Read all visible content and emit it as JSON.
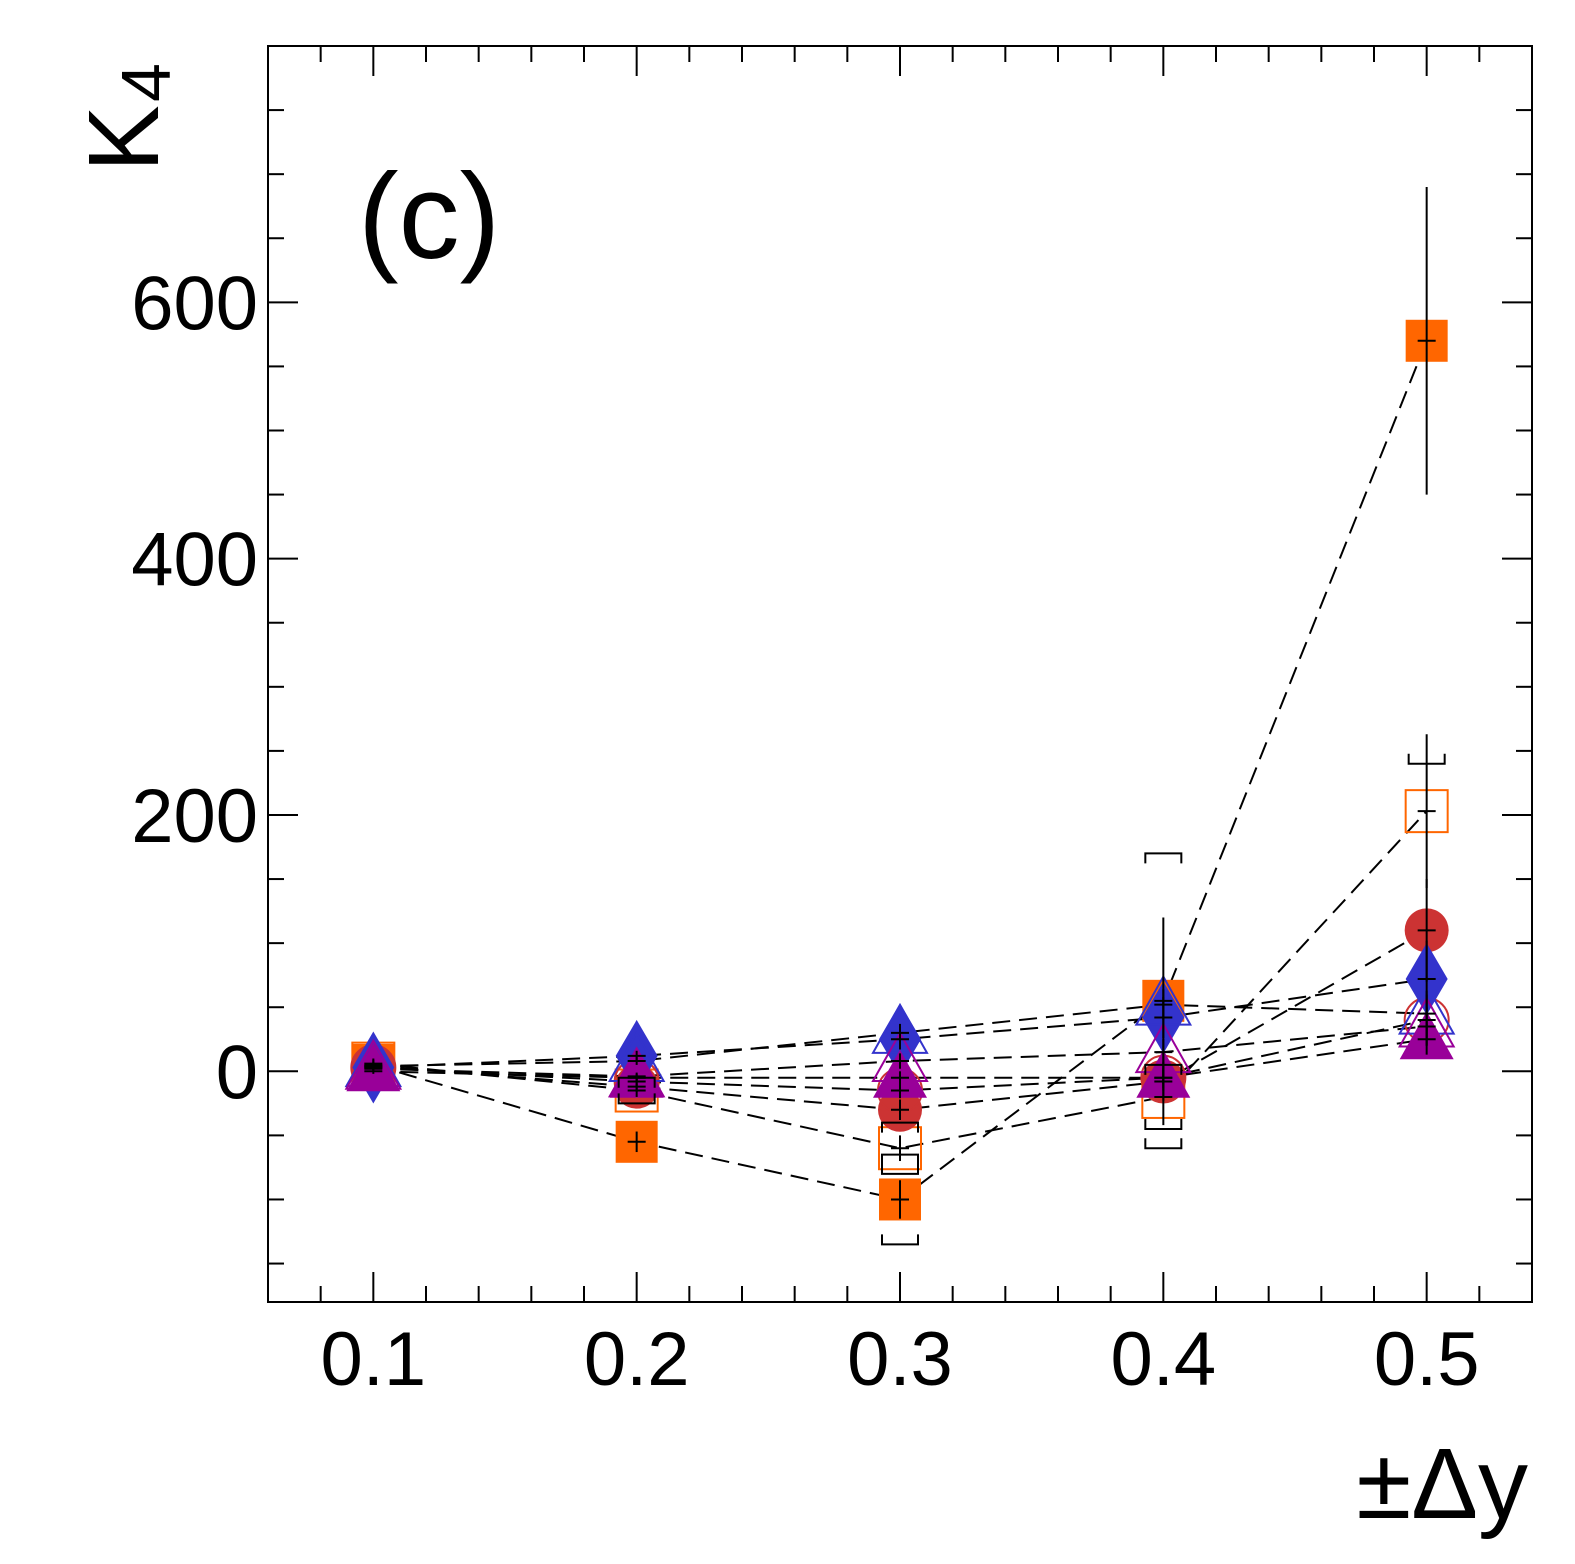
{
  "chart_data": {
    "type": "scatter",
    "title": "",
    "panel_label": "(c)",
    "xlabel": "±Δy",
    "ylabel": "K",
    "ylabel_subscript": "4",
    "x": [
      0.1,
      0.2,
      0.3,
      0.4,
      0.5
    ],
    "xticks": [
      "0.1",
      "0.2",
      "0.3",
      "0.4",
      "0.5"
    ],
    "yticks": [
      "0",
      "200",
      "400",
      "600"
    ],
    "xlim": [
      0.06,
      0.54
    ],
    "ylim": [
      -180,
      800
    ],
    "grid": false,
    "colors": {
      "orange": "#ff6600",
      "red": "#cc3333",
      "blue": "#3333cc",
      "purple": "#990099",
      "black": "#000000"
    },
    "series": [
      {
        "name": "filled square (orange)",
        "marker": "square",
        "filled": true,
        "color": "#ff6600",
        "values": [
          5,
          -55,
          -100,
          55,
          570
        ],
        "err": [
          5,
          8,
          15,
          65,
          120
        ],
        "sys": [
          null,
          null,
          35,
          115,
          330
        ]
      },
      {
        "name": "open square (orange)",
        "marker": "square",
        "filled": false,
        "color": "#ff6600",
        "values": [
          6,
          -15,
          -60,
          -20,
          203
        ],
        "err": [
          3,
          5,
          10,
          22,
          60
        ],
        "sys": [
          null,
          10,
          20,
          25,
          null
        ]
      },
      {
        "name": "filled circle (red)",
        "marker": "circle",
        "filled": true,
        "color": "#cc3333",
        "values": [
          4,
          -12,
          -30,
          -8,
          110
        ],
        "err": [
          3,
          4,
          8,
          15,
          40
        ],
        "sys": [
          null,
          null,
          null,
          null,
          null
        ]
      },
      {
        "name": "open circle (red)",
        "marker": "circle",
        "filled": false,
        "color": "#cc3333",
        "values": [
          3,
          -8,
          -15,
          -5,
          40
        ],
        "err": [
          2,
          3,
          6,
          10,
          20
        ],
        "sys": [
          null,
          null,
          null,
          null,
          null
        ]
      },
      {
        "name": "filled diamond (blue)",
        "marker": "diamond",
        "filled": true,
        "color": "#3333cc",
        "values": [
          3,
          12,
          25,
          42,
          72
        ],
        "err": [
          2,
          4,
          8,
          16,
          30
        ],
        "sys": [
          null,
          null,
          null,
          null,
          null
        ]
      },
      {
        "name": "open triangle (blue)",
        "marker": "triangle",
        "filled": false,
        "color": "#3333cc",
        "values": [
          4,
          8,
          30,
          52,
          45
        ],
        "err": [
          2,
          3,
          7,
          12,
          18
        ],
        "sys": [
          null,
          null,
          null,
          null,
          null
        ]
      },
      {
        "name": "open triangle (purple)",
        "marker": "triangle",
        "filled": false,
        "color": "#990099",
        "values": [
          2,
          -4,
          8,
          15,
          35
        ],
        "err": [
          2,
          3,
          6,
          10,
          15
        ],
        "sys": [
          null,
          null,
          null,
          null,
          null
        ]
      },
      {
        "name": "filled triangle (purple)",
        "marker": "triangle",
        "filled": true,
        "color": "#990099",
        "values": [
          0,
          -5,
          -5,
          -5,
          25
        ],
        "err": [
          2,
          3,
          5,
          8,
          12
        ],
        "sys": [
          null,
          null,
          null,
          null,
          null
        ]
      }
    ]
  }
}
